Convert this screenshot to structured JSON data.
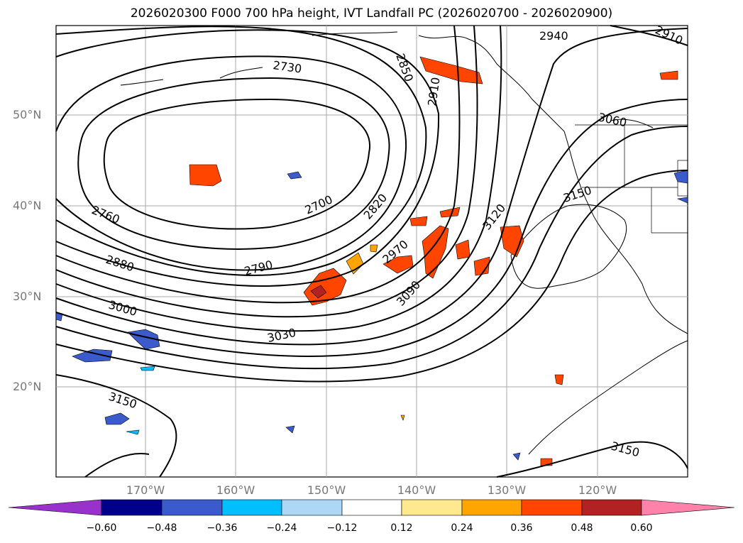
{
  "title": "2026020300 F000 700 hPa height, IVT Landfall PC (2026020700 - 2026020900)",
  "lat_labels": [
    "50°N",
    "40°N",
    "30°N",
    "20°N"
  ],
  "lon_labels": [
    "170°W",
    "160°W",
    "150°W",
    "140°W",
    "130°W",
    "120°W"
  ],
  "contour_labels": [
    "2940",
    "2910",
    "2730",
    "2850",
    "2910",
    "3060",
    "2700",
    "2820",
    "3120",
    "3150",
    "2760",
    "2970",
    "2880",
    "2790",
    "3090",
    "3000",
    "3030",
    "3150",
    "3150"
  ],
  "colorbar": {
    "ticks": [
      "−0.60",
      "−0.48",
      "−0.36",
      "−0.24",
      "−0.12",
      "0.12",
      "0.24",
      "0.36",
      "0.48",
      "0.60"
    ],
    "colors": [
      "#9932cc",
      "#00008b",
      "#3b5bcc",
      "#00bfff",
      "#add8f5",
      "#ffffff",
      "#ffe98f",
      "#ffa500",
      "#ff4500",
      "#b22222",
      "#ff82ab"
    ]
  }
}
